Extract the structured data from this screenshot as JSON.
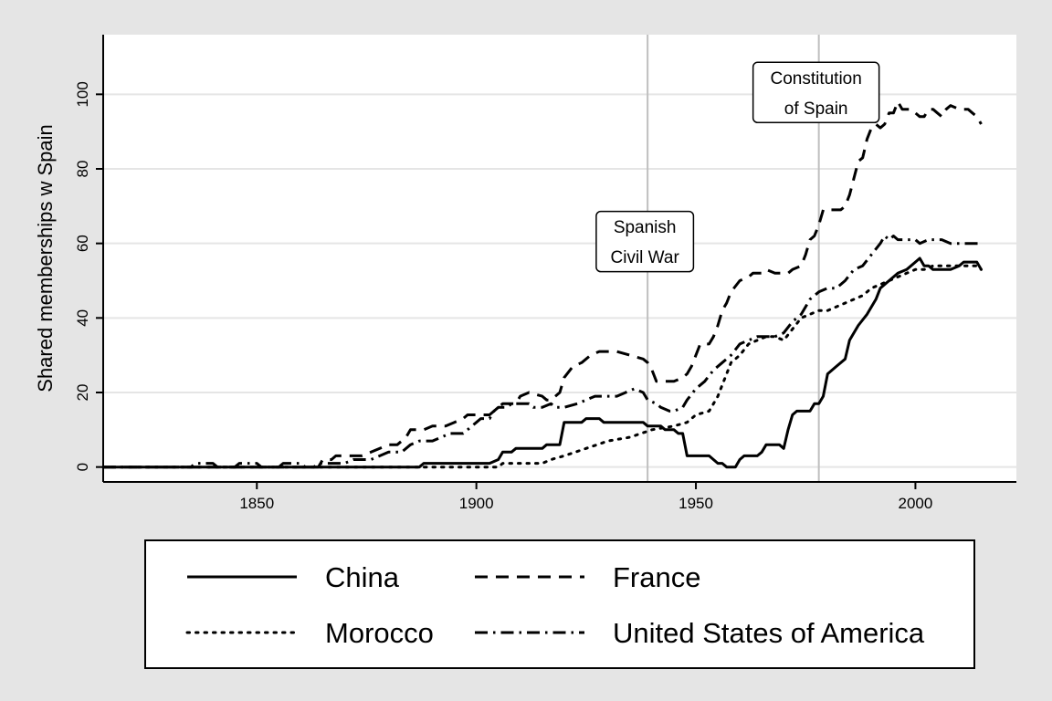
{
  "chart_data": {
    "type": "line",
    "title": "",
    "xlabel": "",
    "ylabel": "Shared memberships w Spain",
    "xlim": [
      1815,
      2023
    ],
    "ylim": [
      -4,
      116
    ],
    "x_ticks": [
      1850,
      1900,
      1950,
      2000
    ],
    "y_ticks": [
      0,
      20,
      40,
      60,
      80,
      100
    ],
    "grid": "horizontal",
    "legend_position": "bottom",
    "annotations": [
      {
        "x": 1939,
        "lines": [
          "Spanish",
          "Civil War"
        ],
        "label_y": 60.5
      },
      {
        "x": 1978,
        "lines": [
          "Constitution",
          "of Spain"
        ],
        "label_y": 100.5
      }
    ],
    "series": [
      {
        "name": "China",
        "dash": "solid",
        "points": [
          [
            1815,
            0
          ],
          [
            1887,
            0
          ],
          [
            1888,
            1
          ],
          [
            1903,
            1
          ],
          [
            1905,
            2
          ],
          [
            1906,
            4
          ],
          [
            1908,
            4
          ],
          [
            1909,
            5
          ],
          [
            1915,
            5
          ],
          [
            1916,
            6
          ],
          [
            1919,
            6
          ],
          [
            1920,
            12
          ],
          [
            1924,
            12
          ],
          [
            1925,
            13
          ],
          [
            1928,
            13
          ],
          [
            1929,
            12
          ],
          [
            1938,
            12
          ],
          [
            1939,
            11
          ],
          [
            1942,
            11
          ],
          [
            1943,
            10
          ],
          [
            1945,
            10
          ],
          [
            1946,
            9
          ],
          [
            1947,
            9
          ],
          [
            1948,
            3
          ],
          [
            1953,
            3
          ],
          [
            1954,
            2
          ],
          [
            1955,
            1
          ],
          [
            1956,
            1
          ],
          [
            1957,
            0
          ],
          [
            1959,
            0
          ],
          [
            1960,
            2
          ],
          [
            1961,
            3
          ],
          [
            1964,
            3
          ],
          [
            1965,
            4
          ],
          [
            1966,
            6
          ],
          [
            1969,
            6
          ],
          [
            1970,
            5
          ],
          [
            1971,
            10
          ],
          [
            1972,
            14
          ],
          [
            1973,
            15
          ],
          [
            1976,
            15
          ],
          [
            1977,
            17
          ],
          [
            1978,
            17
          ],
          [
            1979,
            19
          ],
          [
            1980,
            25
          ],
          [
            1982,
            27
          ],
          [
            1984,
            29
          ],
          [
            1985,
            34
          ],
          [
            1987,
            38
          ],
          [
            1989,
            41
          ],
          [
            1990,
            43
          ],
          [
            1991,
            45
          ],
          [
            1992,
            48
          ],
          [
            1994,
            50
          ],
          [
            1996,
            52
          ],
          [
            1998,
            53
          ],
          [
            2000,
            55
          ],
          [
            2001,
            56
          ],
          [
            2002,
            54
          ],
          [
            2003,
            54
          ],
          [
            2004,
            53
          ],
          [
            2006,
            53
          ],
          [
            2008,
            53
          ],
          [
            2010,
            54
          ],
          [
            2011,
            55
          ],
          [
            2014,
            55
          ],
          [
            2015,
            53
          ]
        ]
      },
      {
        "name": "France",
        "dash": "dashed",
        "points": [
          [
            1815,
            0
          ],
          [
            1864,
            0
          ],
          [
            1865,
            2
          ],
          [
            1867,
            2
          ],
          [
            1868,
            3
          ],
          [
            1874,
            3
          ],
          [
            1876,
            4
          ],
          [
            1878,
            5
          ],
          [
            1880,
            6
          ],
          [
            1882,
            6
          ],
          [
            1884,
            8
          ],
          [
            1885,
            10
          ],
          [
            1888,
            10
          ],
          [
            1890,
            11
          ],
          [
            1893,
            11
          ],
          [
            1895,
            12
          ],
          [
            1897,
            13
          ],
          [
            1898,
            14
          ],
          [
            1903,
            14
          ],
          [
            1905,
            16
          ],
          [
            1906,
            17
          ],
          [
            1909,
            17
          ],
          [
            1910,
            19
          ],
          [
            1912,
            20
          ],
          [
            1915,
            19
          ],
          [
            1916,
            18
          ],
          [
            1917,
            18
          ],
          [
            1919,
            20
          ],
          [
            1920,
            24
          ],
          [
            1922,
            27
          ],
          [
            1924,
            28
          ],
          [
            1926,
            30
          ],
          [
            1928,
            31
          ],
          [
            1932,
            31
          ],
          [
            1935,
            30
          ],
          [
            1938,
            29
          ],
          [
            1939,
            28
          ],
          [
            1940,
            26
          ],
          [
            1941,
            23
          ],
          [
            1945,
            23
          ],
          [
            1947,
            24
          ],
          [
            1948,
            25
          ],
          [
            1949,
            27
          ],
          [
            1950,
            30
          ],
          [
            1951,
            33
          ],
          [
            1953,
            33
          ],
          [
            1954,
            35
          ],
          [
            1955,
            38
          ],
          [
            1956,
            42
          ],
          [
            1957,
            44
          ],
          [
            1958,
            47
          ],
          [
            1960,
            50
          ],
          [
            1962,
            51
          ],
          [
            1963,
            52
          ],
          [
            1965,
            52
          ],
          [
            1966,
            53
          ],
          [
            1968,
            52
          ],
          [
            1971,
            52
          ],
          [
            1972,
            53
          ],
          [
            1974,
            54
          ],
          [
            1975,
            57
          ],
          [
            1976,
            61
          ],
          [
            1977,
            62
          ],
          [
            1978,
            65
          ],
          [
            1979,
            69
          ],
          [
            1983,
            69
          ],
          [
            1984,
            70
          ],
          [
            1985,
            73
          ],
          [
            1987,
            82
          ],
          [
            1988,
            83
          ],
          [
            1989,
            88
          ],
          [
            1990,
            91
          ],
          [
            1991,
            92
          ],
          [
            1992,
            91
          ],
          [
            1993,
            92
          ],
          [
            1994,
            95
          ],
          [
            1995,
            95
          ],
          [
            1996,
            98
          ],
          [
            1997,
            96
          ],
          [
            1999,
            96
          ],
          [
            2000,
            95
          ],
          [
            2001,
            94
          ],
          [
            2002,
            94
          ],
          [
            2003,
            96
          ],
          [
            2004,
            96
          ],
          [
            2005,
            95
          ],
          [
            2006,
            94
          ],
          [
            2007,
            96
          ],
          [
            2008,
            97
          ],
          [
            2010,
            96
          ],
          [
            2012,
            96
          ],
          [
            2013,
            95
          ],
          [
            2014,
            94
          ],
          [
            2015,
            92
          ]
        ]
      },
      {
        "name": "Morocco",
        "dash": "dotted",
        "points": [
          [
            1815,
            0
          ],
          [
            1905,
            0
          ],
          [
            1906,
            1
          ],
          [
            1915,
            1
          ],
          [
            1917,
            2
          ],
          [
            1920,
            3
          ],
          [
            1925,
            5
          ],
          [
            1930,
            7
          ],
          [
            1935,
            8
          ],
          [
            1940,
            10
          ],
          [
            1945,
            11
          ],
          [
            1948,
            12
          ],
          [
            1950,
            14
          ],
          [
            1953,
            15
          ],
          [
            1954,
            17
          ],
          [
            1955,
            19
          ],
          [
            1956,
            22
          ],
          [
            1957,
            25
          ],
          [
            1958,
            28
          ],
          [
            1960,
            30
          ],
          [
            1962,
            33
          ],
          [
            1964,
            34
          ],
          [
            1966,
            35
          ],
          [
            1968,
            35
          ],
          [
            1970,
            34
          ],
          [
            1972,
            37
          ],
          [
            1974,
            40
          ],
          [
            1976,
            41
          ],
          [
            1978,
            42
          ],
          [
            1980,
            42
          ],
          [
            1982,
            43
          ],
          [
            1984,
            44
          ],
          [
            1986,
            45
          ],
          [
            1988,
            46
          ],
          [
            1990,
            48
          ],
          [
            1992,
            49
          ],
          [
            1994,
            50
          ],
          [
            1996,
            51
          ],
          [
            1998,
            52
          ],
          [
            2000,
            53
          ],
          [
            2002,
            53
          ],
          [
            2004,
            54
          ],
          [
            2006,
            54
          ],
          [
            2008,
            54
          ],
          [
            2010,
            54
          ],
          [
            2012,
            54
          ],
          [
            2014,
            54
          ],
          [
            2015,
            53
          ]
        ]
      },
      {
        "name": "United States of America",
        "dash": "dashdot",
        "points": [
          [
            1815,
            0
          ],
          [
            1835,
            0
          ],
          [
            1836,
            1
          ],
          [
            1840,
            1
          ],
          [
            1841,
            0
          ],
          [
            1845,
            0
          ],
          [
            1846,
            1
          ],
          [
            1850,
            1
          ],
          [
            1851,
            0
          ],
          [
            1855,
            0
          ],
          [
            1856,
            1
          ],
          [
            1860,
            1
          ],
          [
            1861,
            0
          ],
          [
            1863,
            0
          ],
          [
            1864,
            1
          ],
          [
            1870,
            1
          ],
          [
            1872,
            2
          ],
          [
            1876,
            2
          ],
          [
            1878,
            3
          ],
          [
            1880,
            4
          ],
          [
            1883,
            4
          ],
          [
            1885,
            6
          ],
          [
            1887,
            7
          ],
          [
            1890,
            7
          ],
          [
            1892,
            8
          ],
          [
            1894,
            9
          ],
          [
            1897,
            9
          ],
          [
            1899,
            11
          ],
          [
            1900,
            12
          ],
          [
            1901,
            13
          ],
          [
            1903,
            13
          ],
          [
            1904,
            15
          ],
          [
            1905,
            16
          ],
          [
            1907,
            16
          ],
          [
            1908,
            17
          ],
          [
            1912,
            17
          ],
          [
            1913,
            16
          ],
          [
            1915,
            16
          ],
          [
            1917,
            17
          ],
          [
            1918,
            16
          ],
          [
            1920,
            16
          ],
          [
            1923,
            17
          ],
          [
            1925,
            18
          ],
          [
            1927,
            19
          ],
          [
            1932,
            19
          ],
          [
            1934,
            20
          ],
          [
            1936,
            21
          ],
          [
            1938,
            20
          ],
          [
            1939,
            18
          ],
          [
            1941,
            17
          ],
          [
            1942,
            16
          ],
          [
            1944,
            15
          ],
          [
            1945,
            15
          ],
          [
            1947,
            16
          ],
          [
            1948,
            18
          ],
          [
            1950,
            21
          ],
          [
            1952,
            23
          ],
          [
            1954,
            26
          ],
          [
            1956,
            28
          ],
          [
            1958,
            30
          ],
          [
            1960,
            33
          ],
          [
            1962,
            34
          ],
          [
            1964,
            35
          ],
          [
            1966,
            35
          ],
          [
            1968,
            35
          ],
          [
            1970,
            36
          ],
          [
            1972,
            39
          ],
          [
            1974,
            41
          ],
          [
            1976,
            45
          ],
          [
            1978,
            47
          ],
          [
            1980,
            48
          ],
          [
            1982,
            48
          ],
          [
            1984,
            50
          ],
          [
            1986,
            53
          ],
          [
            1988,
            54
          ],
          [
            1990,
            57
          ],
          [
            1992,
            60
          ],
          [
            1993,
            62
          ],
          [
            1994,
            61
          ],
          [
            1995,
            62
          ],
          [
            1996,
            61
          ],
          [
            1998,
            61
          ],
          [
            2000,
            61
          ],
          [
            2001,
            60
          ],
          [
            2003,
            61
          ],
          [
            2005,
            61
          ],
          [
            2006,
            61
          ],
          [
            2008,
            60
          ],
          [
            2010,
            60
          ],
          [
            2012,
            60
          ],
          [
            2014,
            60
          ],
          [
            2015,
            60
          ]
        ]
      }
    ]
  }
}
